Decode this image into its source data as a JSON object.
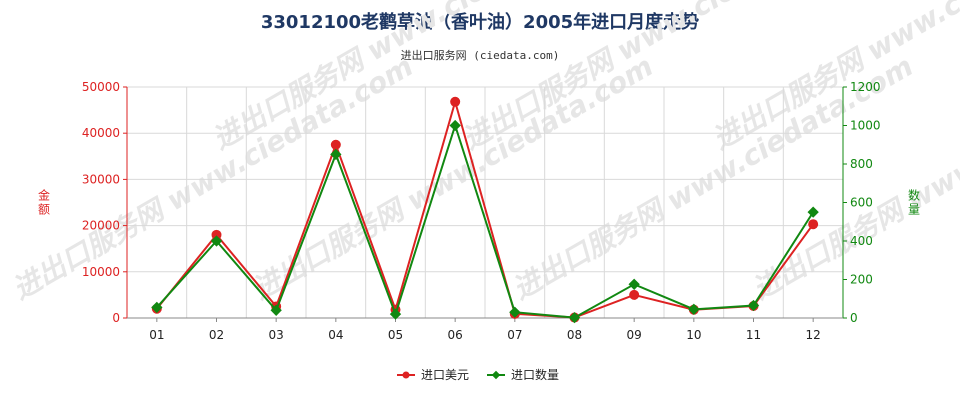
{
  "chart_data": {
    "type": "line",
    "title": "33012100老鹳草油（香叶油）2005年进口月度走势",
    "subtitle": "进出口服务网 (ciedata.com)",
    "watermark": "进出口服务网 www.ciedata.com",
    "categories": [
      "01",
      "02",
      "03",
      "04",
      "05",
      "06",
      "07",
      "08",
      "09",
      "10",
      "11",
      "12"
    ],
    "left_axis": {
      "label": "金额",
      "ylim": [
        0,
        50000
      ],
      "ticks": [
        "0",
        "10000",
        "20000",
        "30000",
        "40000",
        "50000"
      ],
      "color": "#dd2222"
    },
    "right_axis": {
      "label": "数量",
      "ylim": [
        0,
        1200
      ],
      "ticks": [
        "0",
        "200",
        "400",
        "600",
        "800",
        "1000",
        "1200"
      ],
      "color": "#118811"
    },
    "series": [
      {
        "name": "进口美元",
        "axis": "left",
        "color": "#dd2222",
        "values": [
          2000,
          18000,
          2500,
          37500,
          1800,
          46800,
          900,
          100,
          5000,
          1800,
          2600,
          20300
        ]
      },
      {
        "name": "进口数量",
        "axis": "right",
        "color": "#118811",
        "values": [
          55,
          400,
          40,
          850,
          20,
          1000,
          30,
          2,
          175,
          45,
          65,
          550
        ]
      }
    ],
    "grid": true,
    "legend_position": "bottom-center"
  }
}
